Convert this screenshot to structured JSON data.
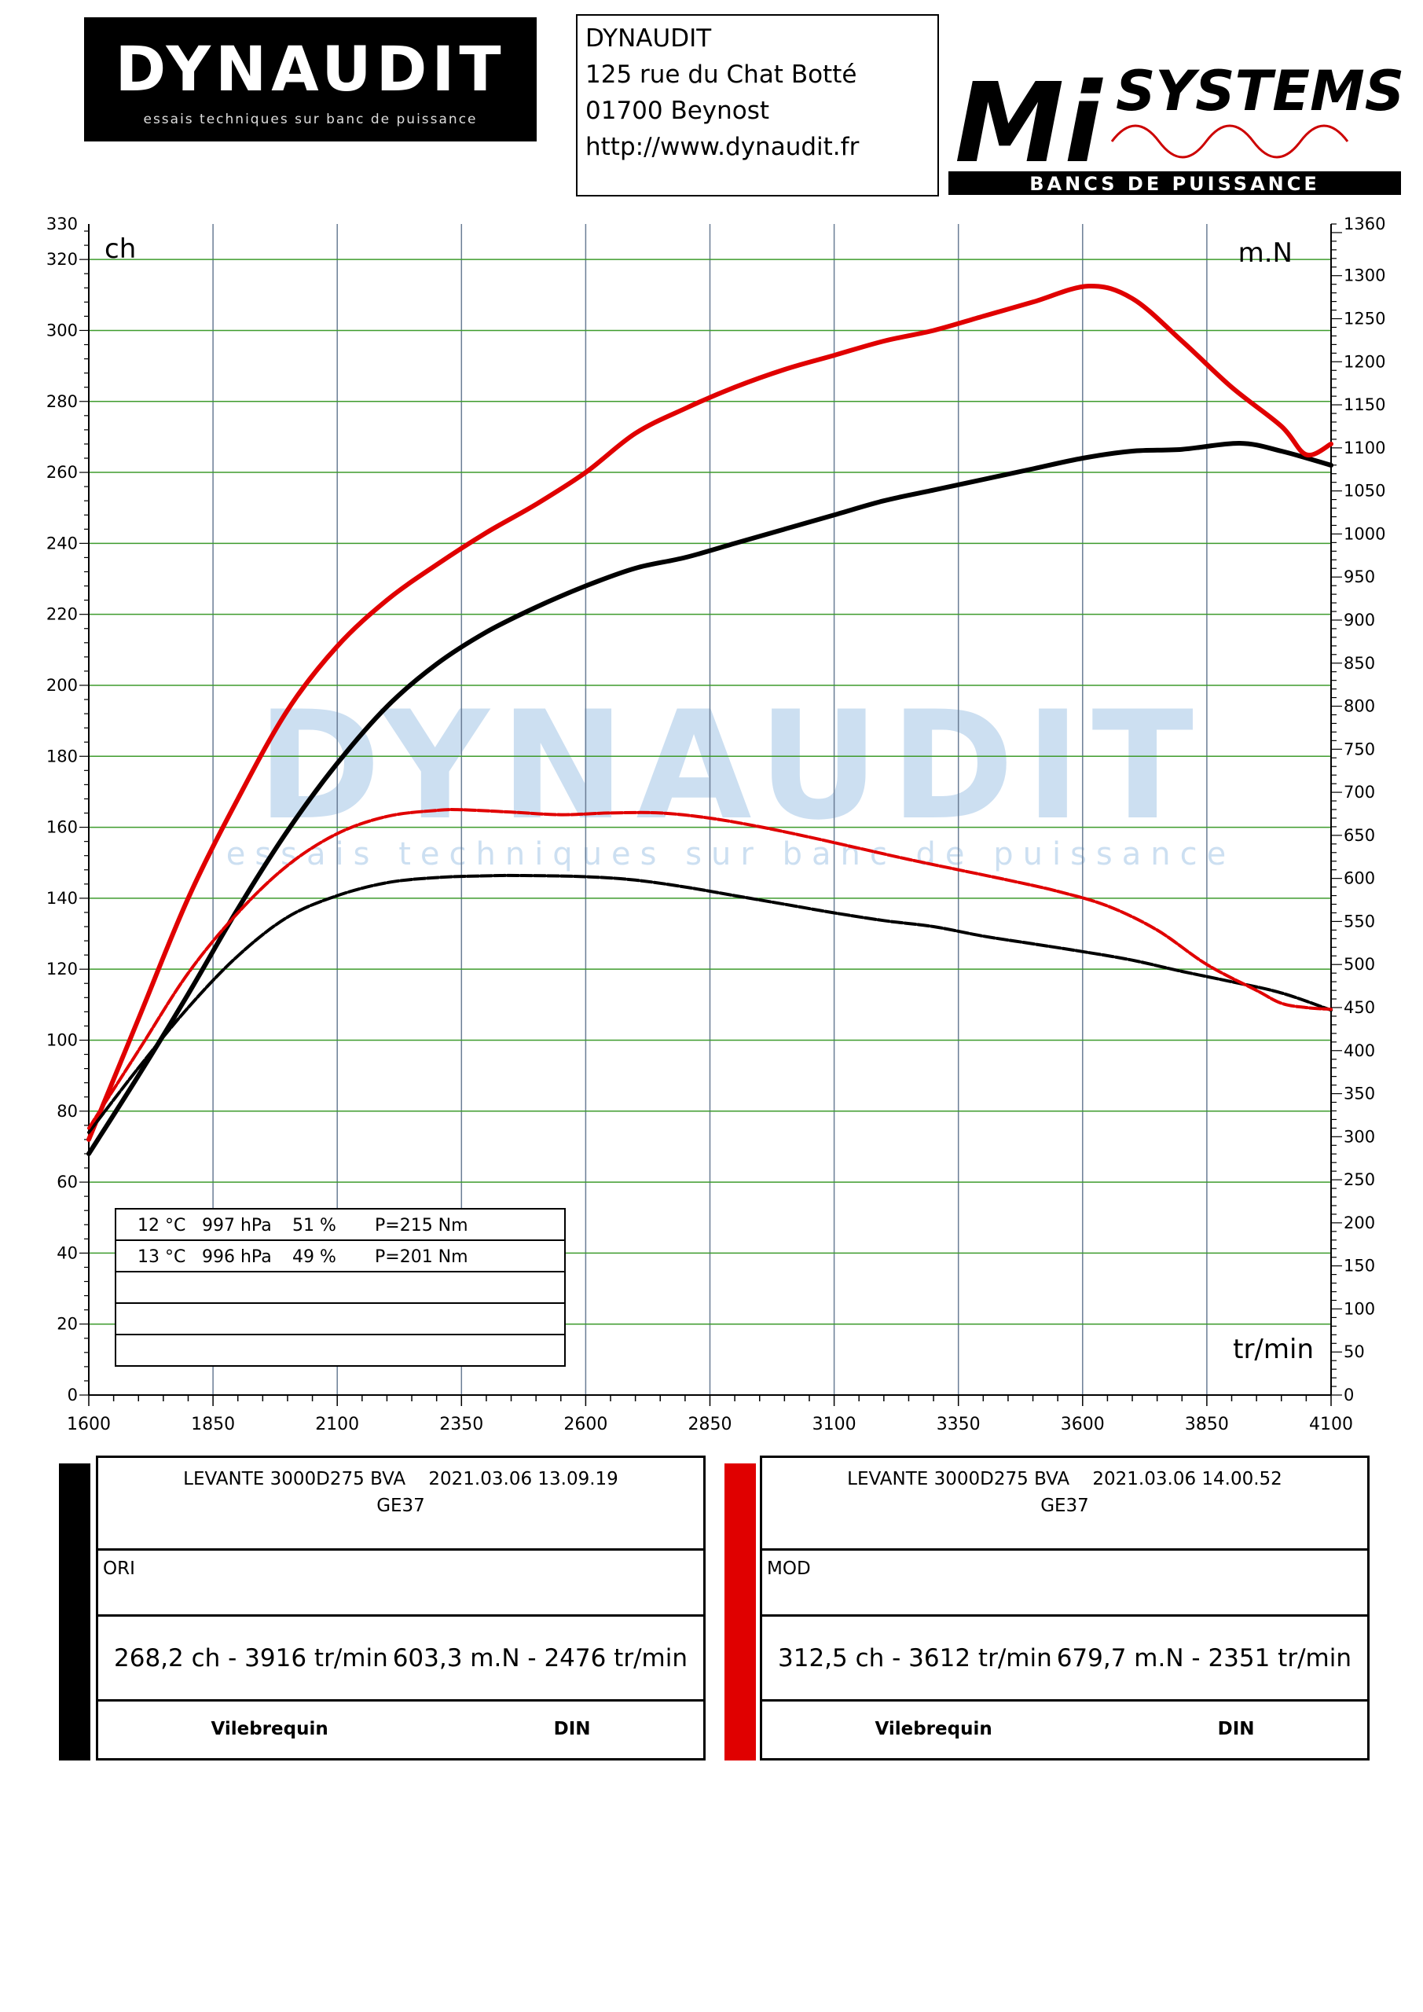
{
  "header": {
    "logo_left": {
      "brand": "DYNAUDIT",
      "tagline": "essais techniques sur banc de puissance"
    },
    "address": {
      "line1": "DYNAUDIT",
      "line2": "125 rue du Chat Botté",
      "line3": "01700 Beynost",
      "line4": "http://www.dynaudit.fr"
    },
    "logo_right": {
      "brand": "SYSTEMS",
      "letters": "Mi",
      "tagline": "BANCS DE PUISSANCE"
    }
  },
  "watermark": {
    "brand": "DYNAUDIT",
    "tagline": "essais techniques sur banc de puissance"
  },
  "chart_data": {
    "type": "line",
    "xlabel": "tr/min",
    "ylabel_left": "ch",
    "ylabel_right": "m.N",
    "xlim": [
      1600,
      4100
    ],
    "ylim_left": [
      0,
      330
    ],
    "ylim_right": [
      0,
      1360
    ],
    "x_ticks": [
      1600,
      1850,
      2100,
      2350,
      2600,
      2850,
      3100,
      3350,
      3600,
      3850,
      4100
    ],
    "y_left_ticks": [
      0,
      20,
      40,
      60,
      80,
      100,
      120,
      140,
      160,
      180,
      200,
      220,
      240,
      260,
      280,
      300,
      320,
      330
    ],
    "y_right_ticks": [
      0,
      50,
      100,
      150,
      200,
      250,
      300,
      350,
      400,
      450,
      500,
      550,
      600,
      650,
      700,
      750,
      800,
      850,
      900,
      950,
      1000,
      1050,
      1100,
      1150,
      1200,
      1250,
      1300,
      1360
    ],
    "grid": true,
    "series": [
      {
        "name": "ORI",
        "quantity": "power",
        "axis": "left",
        "color": "#000000",
        "x": [
          1600,
          1700,
          1800,
          1900,
          2000,
          2100,
          2200,
          2300,
          2400,
          2500,
          2600,
          2700,
          2800,
          2900,
          3000,
          3100,
          3200,
          3300,
          3400,
          3500,
          3600,
          3700,
          3800,
          3916,
          4000,
          4100
        ],
        "y": [
          68,
          90,
          113,
          137,
          159,
          178,
          194,
          206,
          215,
          222,
          228,
          233,
          236,
          240,
          244,
          248,
          252,
          255,
          258,
          261,
          264,
          266,
          266.5,
          268.2,
          266,
          262
        ]
      },
      {
        "name": "MOD",
        "quantity": "power",
        "axis": "left",
        "color": "#e00000",
        "x": [
          1600,
          1700,
          1800,
          1900,
          2000,
          2100,
          2200,
          2300,
          2400,
          2500,
          2600,
          2700,
          2800,
          2900,
          3000,
          3100,
          3200,
          3300,
          3400,
          3500,
          3612,
          3700,
          3800,
          3900,
          4000,
          4050,
          4100
        ],
        "y": [
          72,
          106,
          140,
          168,
          193,
          211,
          224,
          234,
          243,
          251,
          260,
          271,
          278,
          284,
          289,
          293,
          297,
          300,
          304,
          308,
          312.5,
          309,
          297,
          284,
          273,
          265,
          268
        ]
      },
      {
        "name": "ORI",
        "quantity": "torque",
        "axis": "right",
        "color": "#000000",
        "x": [
          1600,
          1700,
          1800,
          1900,
          2000,
          2100,
          2200,
          2300,
          2400,
          2476,
          2600,
          2700,
          2800,
          2900,
          3000,
          3100,
          3200,
          3300,
          3400,
          3500,
          3600,
          3700,
          3800,
          3900,
          4000,
          4100
        ],
        "y": [
          305,
          380,
          450,
          510,
          555,
          580,
          595,
          601,
          603,
          603.3,
          602,
          598,
          590,
          580,
          570,
          560,
          551,
          544,
          533,
          524,
          515,
          505,
          492,
          480,
          467,
          447
        ]
      },
      {
        "name": "MOD",
        "quantity": "torque",
        "axis": "right",
        "color": "#e00000",
        "x": [
          1600,
          1700,
          1800,
          1900,
          2000,
          2100,
          2200,
          2300,
          2351,
          2450,
          2550,
          2650,
          2750,
          2850,
          2950,
          3050,
          3150,
          3250,
          3350,
          3450,
          3550,
          3650,
          3750,
          3850,
          3950,
          4000,
          4050,
          4100
        ],
        "y": [
          310,
          400,
          490,
          560,
          615,
          652,
          672,
          679,
          679.7,
          677,
          674,
          676,
          676,
          670,
          660,
          648,
          635,
          622,
          610,
          598,
          585,
          568,
          540,
          500,
          470,
          455,
          450,
          448
        ]
      }
    ],
    "conditions_table": [
      {
        "temp": "12 °C",
        "pressure": "997 hPa",
        "humidity": "51 %",
        "loss": "P=215 Nm"
      },
      {
        "temp": "13 °C",
        "pressure": "996 hPa",
        "humidity": "49 %",
        "loss": "P=201 Nm"
      }
    ]
  },
  "runs": [
    {
      "color": "#000000",
      "vehicle": "LEVANTE 3000D275 BVA",
      "datetime": "2021.03.06 13.09.19",
      "code": "GE37",
      "config": "ORI",
      "power_result": "268,2 ch - 3916 tr/min",
      "torque_result": "603,3 m.N - 2476 tr/min",
      "mode1": "Vilebrequin",
      "mode2": "DIN"
    },
    {
      "color": "#e00000",
      "vehicle": "LEVANTE 3000D275 BVA",
      "datetime": "2021.03.06 14.00.52",
      "code": "GE37",
      "config": "MOD",
      "power_result": "312,5 ch - 3612 tr/min",
      "torque_result": "679,7 m.N - 2351 tr/min",
      "mode1": "Vilebrequin",
      "mode2": "DIN"
    }
  ]
}
